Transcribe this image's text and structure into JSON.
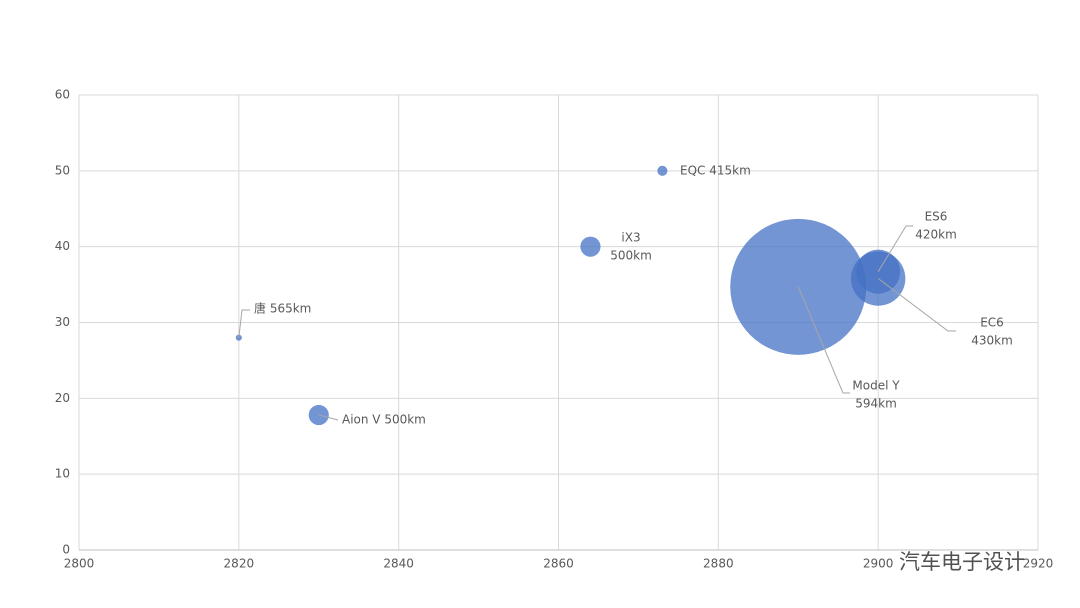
{
  "chart_data": {
    "type": "bubble",
    "x": [
      2820,
      2830,
      2864,
      2873,
      2890,
      2900,
      2900
    ],
    "values": [
      28,
      17.8,
      40,
      50,
      34.7,
      36.7,
      35.8
    ],
    "sizes": [
      0.2,
      2.2,
      2.2,
      0.55,
      100,
      10.5,
      16
    ],
    "labels": [
      [
        "唐 565km"
      ],
      [
        "Aion V 500km"
      ],
      [
        "iX3",
        "500km"
      ],
      [
        "EQC 415km"
      ],
      [
        "Model Y",
        "594km"
      ],
      [
        "ES6",
        "420km"
      ],
      [
        "EC6",
        "430km"
      ]
    ],
    "color": "#4472c4",
    "xlim": [
      2800,
      2920
    ],
    "xticks": [
      2800,
      2820,
      2840,
      2860,
      2880,
      2900,
      2920
    ],
    "ylim": [
      0,
      60
    ],
    "yticks": [
      0,
      10,
      20,
      30,
      40,
      50,
      60
    ],
    "grid": true
  },
  "watermark": "汽车电子设计"
}
